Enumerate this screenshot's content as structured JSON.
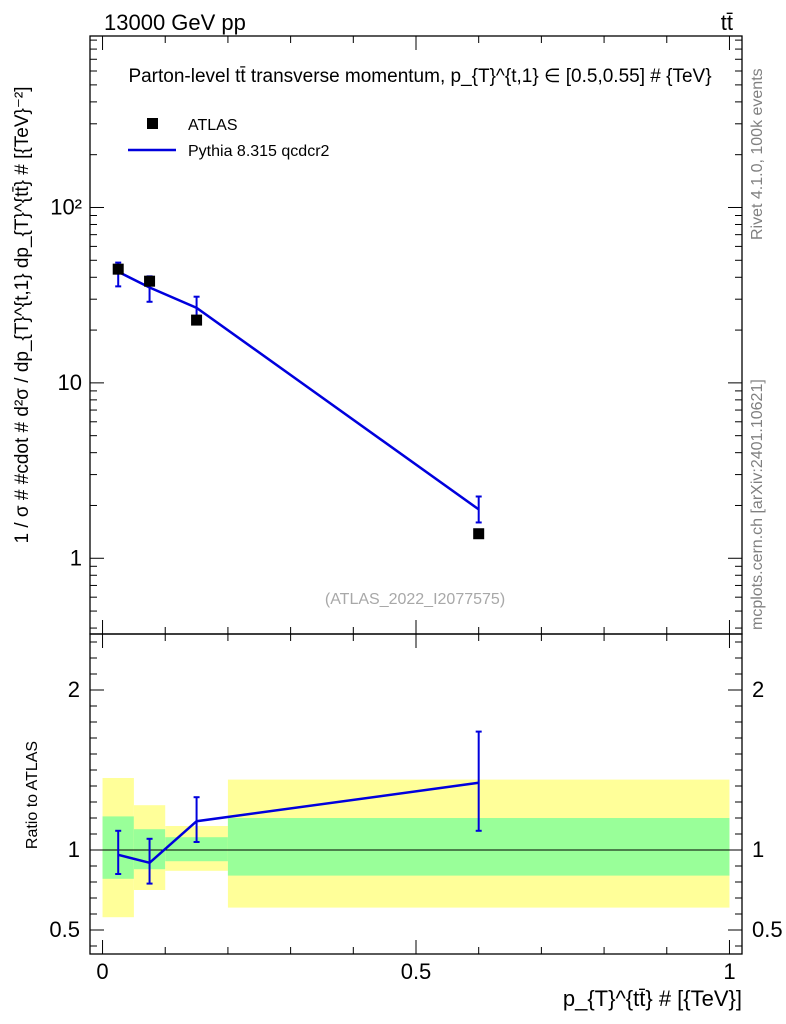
{
  "header": {
    "energy_label": "13000 GeV pp",
    "process_label": "tt̄"
  },
  "side_text": {
    "rivet": "Rivet 4.1.0,  100k events",
    "mcplots": "mcplots.cern.ch [arXiv:2401.10621]"
  },
  "colors": {
    "mc_line": "#0000dd",
    "data_marker": "#000000",
    "band_inner": "#99ff99",
    "band_outer": "#ffff99"
  },
  "chart_data": [
    {
      "type": "line",
      "scale": "log",
      "title": "Parton-level tt̄ transverse momentum, p_{T}^{t,1} ∈ [0.5,0.55] # {TeV}",
      "ylabel": "1 / σ # #cdot # d²σ / dp_{T}^{t,1} dp_{T}^{tt̄} # [{TeV}⁻²]",
      "xlim": [
        -0.02,
        1.02
      ],
      "ylim": [
        0.37,
        950
      ],
      "y_ticks": [
        {
          "value": 1,
          "label": "1"
        },
        {
          "value": 10,
          "label": "10"
        },
        {
          "value": 100,
          "label": "10²"
        }
      ],
      "legend": {
        "position": "top-left",
        "entries": [
          {
            "label": "ATLAS",
            "kind": "marker"
          },
          {
            "label": "Pythia 8.315 qcdcr2",
            "kind": "line"
          }
        ]
      },
      "watermark": "(ATLAS_2022_I2077575)",
      "series": [
        {
          "name": "ATLAS",
          "x": [
            0.025,
            0.075,
            0.15,
            0.6
          ],
          "values": [
            44.5,
            38.0,
            22.8,
            1.38
          ]
        },
        {
          "name": "Pythia 8.315 qcdcr2",
          "x": [
            0.025,
            0.075,
            0.15,
            0.6
          ],
          "values": [
            43.0,
            35.0,
            26.8,
            1.9
          ],
          "err_low": [
            35.5,
            29.0,
            22.5,
            1.6
          ],
          "err_high": [
            48.5,
            40.5,
            31.0,
            2.25
          ]
        }
      ]
    },
    {
      "type": "line",
      "scale": "linear",
      "ylabel": "Ratio to ATLAS",
      "xlabel": "p_{T}^{tt̄} # [{TeV}]",
      "xlim": [
        -0.02,
        1.02
      ],
      "ylim": [
        0.35,
        2.35
      ],
      "x_ticks": [
        {
          "value": 0,
          "label": "0"
        },
        {
          "value": 0.5,
          "label": "0.5"
        },
        {
          "value": 1,
          "label": "1"
        }
      ],
      "y_ticks": [
        {
          "value": 0.5,
          "label": "0.5"
        },
        {
          "value": 1,
          "label": "1"
        },
        {
          "value": 2,
          "label": "2"
        }
      ],
      "bands": [
        {
          "x_low": 0.0,
          "x_high": 0.05,
          "inner": [
            0.82,
            1.21
          ],
          "outer": [
            0.58,
            1.45
          ]
        },
        {
          "x_low": 0.05,
          "x_high": 0.1,
          "inner": [
            0.88,
            1.13
          ],
          "outer": [
            0.75,
            1.28
          ]
        },
        {
          "x_low": 0.1,
          "x_high": 0.2,
          "inner": [
            0.93,
            1.08
          ],
          "outer": [
            0.87,
            1.15
          ]
        },
        {
          "x_low": 0.2,
          "x_high": 1.0,
          "inner": [
            0.84,
            1.2
          ],
          "outer": [
            0.64,
            1.44
          ]
        }
      ],
      "series": [
        {
          "name": "Pythia 8.315 qcdcr2",
          "x": [
            0.025,
            0.075,
            0.15,
            0.6
          ],
          "values": [
            0.97,
            0.92,
            1.18,
            1.42
          ],
          "err_low": [
            0.85,
            0.79,
            1.05,
            1.12
          ],
          "err_high": [
            1.12,
            1.07,
            1.33,
            1.74
          ]
        }
      ]
    }
  ]
}
